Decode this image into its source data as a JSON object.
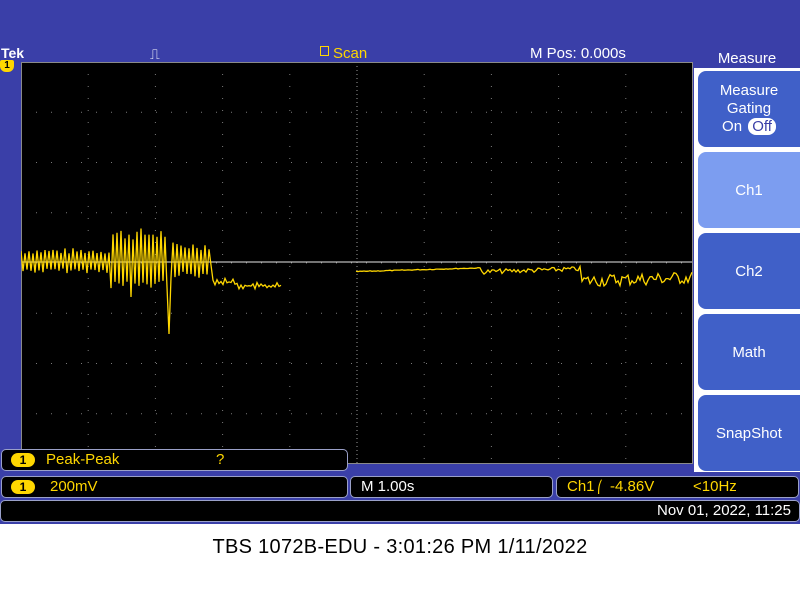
{
  "header": {
    "brand": "Tek",
    "trigger_icon": "⎍",
    "acquisition_mode": "Scan",
    "horizontal_position": "M Pos: 0.000s"
  },
  "channel_marker": "1",
  "menu": {
    "title": "Measure",
    "gating": {
      "line1": "Measure",
      "line2": "Gating",
      "on_label": "On",
      "off_label": "Off"
    },
    "ch1": "Ch1",
    "ch2": "Ch2",
    "math": "Math",
    "snapshot": "SnapShot"
  },
  "measurement": {
    "channel": "1",
    "type": "Peak-Peak",
    "value": "?"
  },
  "vertical": {
    "channel": "1",
    "scale": "200mV"
  },
  "horizontal": {
    "timebase": "M 1.00s"
  },
  "trigger": {
    "source": "Ch1",
    "slope_icon": "⎛",
    "level": "-4.86V",
    "frequency": "<10Hz"
  },
  "datetime": "Nov 01, 2022, 11:25",
  "caption": "TBS 1072B-EDU - 3:01:26 PM   1/11/2022",
  "colors": {
    "trace": "#ffd700",
    "frame": "#3a3fa8",
    "button": "#4060c8",
    "active_button": "#7c9df0"
  }
}
